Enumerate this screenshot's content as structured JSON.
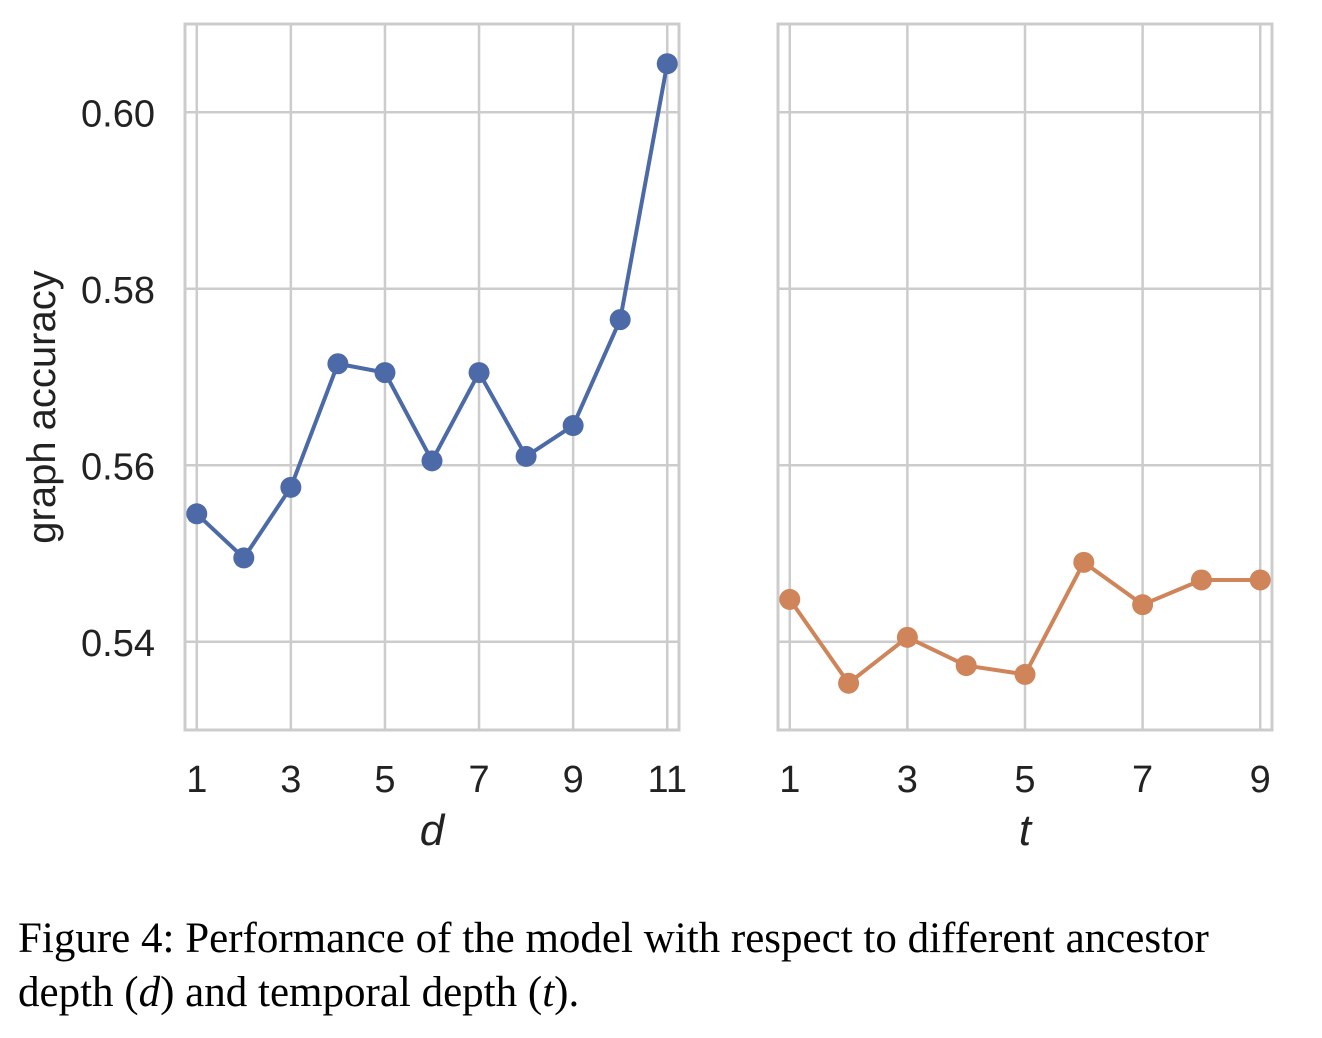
{
  "chart_data": [
    {
      "type": "line",
      "x": [
        1,
        2,
        3,
        4,
        5,
        6,
        7,
        8,
        9,
        10,
        11
      ],
      "series": [
        {
          "values": [
            0.5545,
            0.5495,
            0.5575,
            0.5715,
            0.5705,
            0.5605,
            0.5705,
            0.561,
            0.5645,
            0.5765,
            0.6055
          ],
          "color": "#4c6aa8"
        }
      ],
      "xlabel": "d",
      "ylabel": "graph accuracy",
      "xticks": [
        1,
        3,
        5,
        7,
        9,
        11
      ],
      "yticks": [
        0.54,
        0.56,
        0.58,
        0.6
      ],
      "ytick_labels": [
        "0.54",
        "0.56",
        "0.58",
        "0.60"
      ],
      "xlim": [
        0.75,
        11.25
      ],
      "ylim": [
        0.53,
        0.61
      ],
      "grid": true
    },
    {
      "type": "line",
      "x": [
        1,
        2,
        3,
        4,
        5,
        6,
        7,
        8,
        9
      ],
      "series": [
        {
          "values": [
            0.5448,
            0.5353,
            0.5405,
            0.5373,
            0.5363,
            0.549,
            0.5442,
            0.547,
            0.547
          ],
          "color": "#cf8459"
        }
      ],
      "xlabel": "t",
      "xticks": [
        1,
        3,
        5,
        7,
        9
      ],
      "xlim": [
        0.8,
        9.2
      ],
      "ylim": [
        0.53,
        0.61
      ],
      "grid": true,
      "sharey": true
    }
  ],
  "caption": {
    "prefix": "Figure 4: Performance of the model with respect to different ancestor depth (",
    "var1": "d",
    "middle": ") and temporal depth (",
    "var2": "t",
    "suffix": ")."
  }
}
